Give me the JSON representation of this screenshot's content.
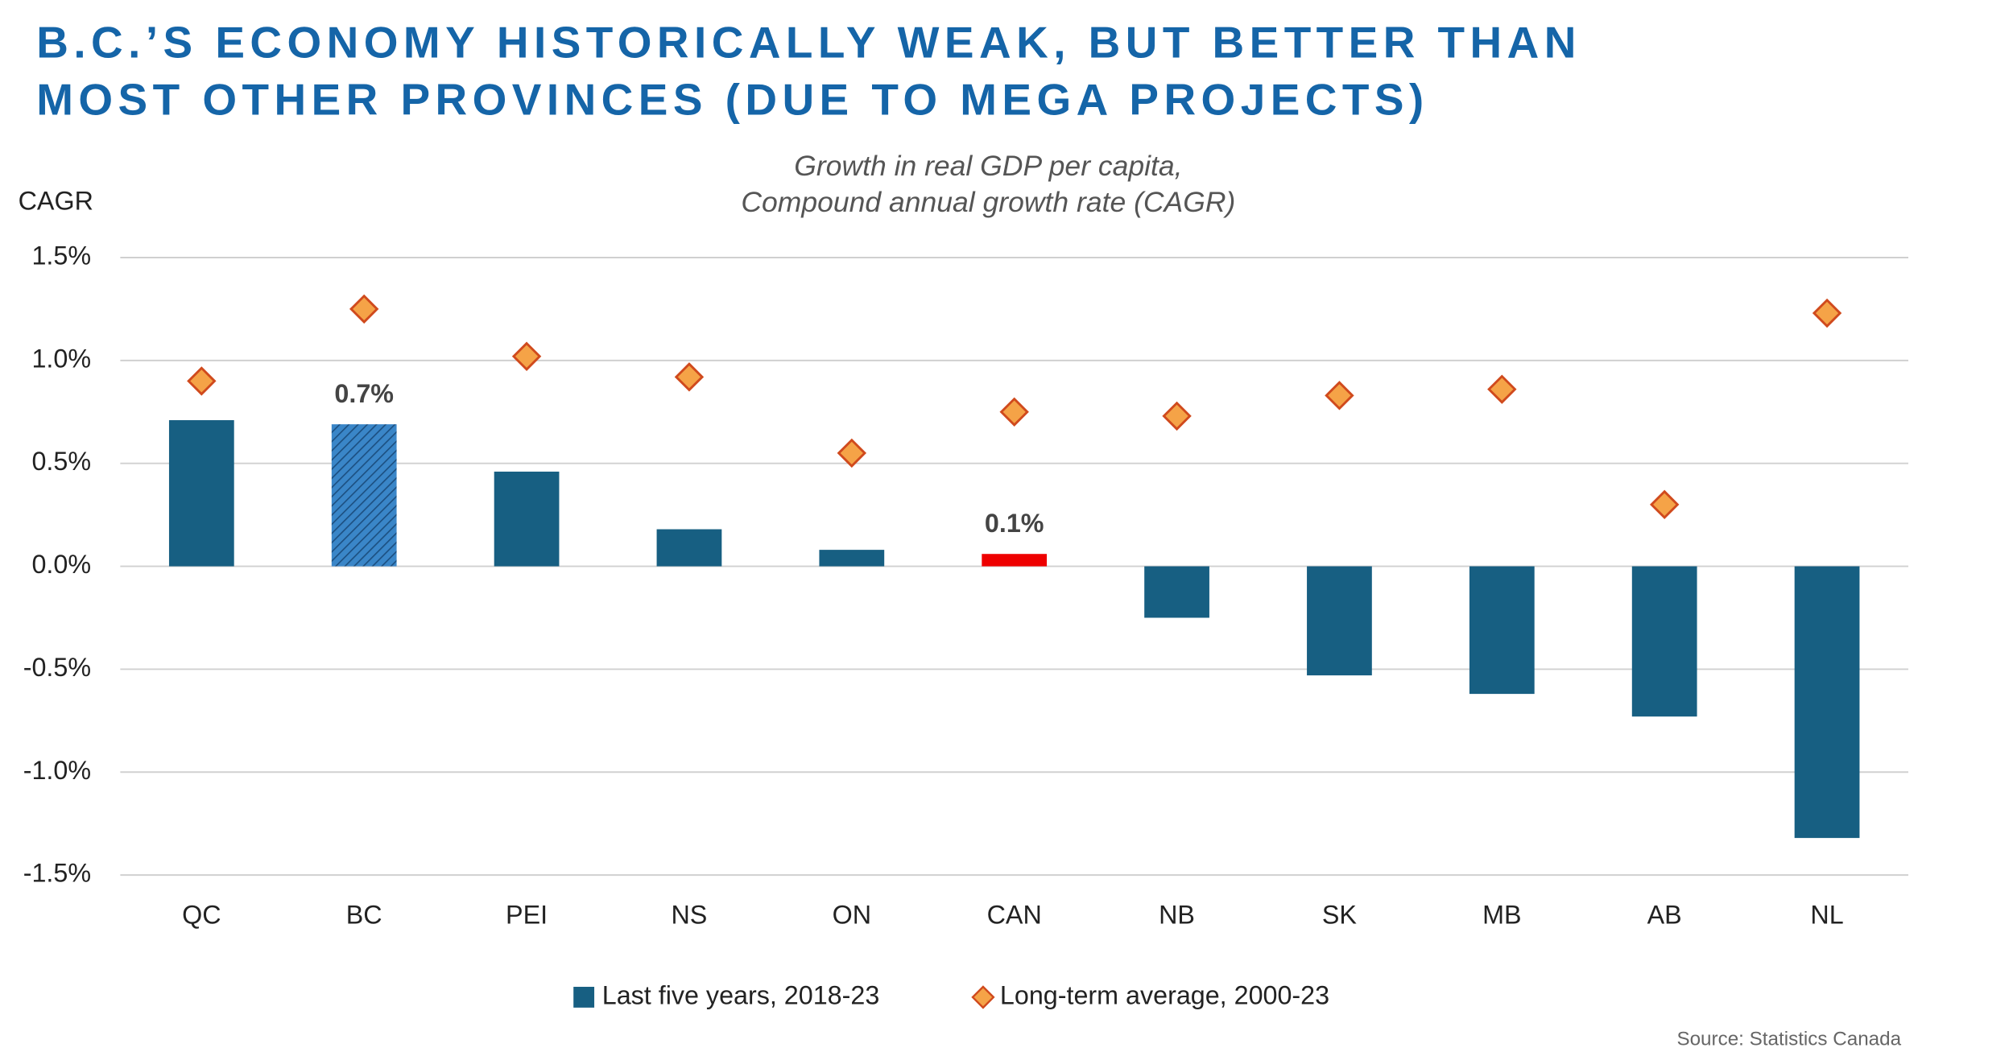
{
  "chart_data": {
    "type": "bar_with_markers",
    "title": [
      "B.C.’S ECONOMY HISTORICALLY WEAK, BUT BETTER THAN",
      "MOST OTHER PROVINCES (DUE TO MEGA PROJECTS)"
    ],
    "subtitle": [
      "Growth in real GDP per capita,",
      "Compound annual growth rate (CAGR)"
    ],
    "y_label": "CAGR",
    "source": "Source: Statistics Canada",
    "categories": [
      "QC",
      "BC",
      "PEI",
      "NS",
      "ON",
      "CAN",
      "NB",
      "SK",
      "MB",
      "AB",
      "NL"
    ],
    "series": [
      {
        "name": "Last five years, 2018-23",
        "kind": "bar",
        "color": "#175f82",
        "point_colors": [
          "#175f82",
          "#3a86c8",
          "#175f82",
          "#175f82",
          "#175f82",
          "#ee0000",
          "#175f82",
          "#175f82",
          "#175f82",
          "#175f82",
          "#175f82"
        ],
        "hatched": [
          false,
          true,
          false,
          false,
          false,
          false,
          false,
          false,
          false,
          false,
          false
        ],
        "values": [
          0.71,
          0.69,
          0.46,
          0.18,
          0.08,
          0.06,
          -0.25,
          -0.53,
          -0.62,
          -0.73,
          -1.32
        ],
        "value_labels": [
          null,
          "0.7%",
          null,
          null,
          null,
          "0.1%",
          null,
          null,
          null,
          null,
          null
        ]
      },
      {
        "name": "Long-term average, 2000-23",
        "kind": "diamond",
        "color": "#f5a347",
        "edge_color": "#d04a1d",
        "values": [
          0.9,
          1.25,
          1.02,
          0.92,
          0.55,
          0.75,
          0.73,
          0.83,
          0.86,
          0.3,
          1.23
        ]
      }
    ],
    "ylim": [
      -1.5,
      1.5
    ],
    "yticks": [
      {
        "value": -1.5,
        "label": "-1.5%"
      },
      {
        "value": -1.0,
        "label": "-1.0%"
      },
      {
        "value": -0.5,
        "label": "-0.5%"
      },
      {
        "value": 0,
        "label": "0.0%"
      },
      {
        "value": 0.5,
        "label": "0.5%"
      },
      {
        "value": 1.0,
        "label": "1.0%"
      },
      {
        "value": 1.5,
        "label": "1.5%"
      }
    ],
    "grid": true,
    "legend": "bottom"
  }
}
